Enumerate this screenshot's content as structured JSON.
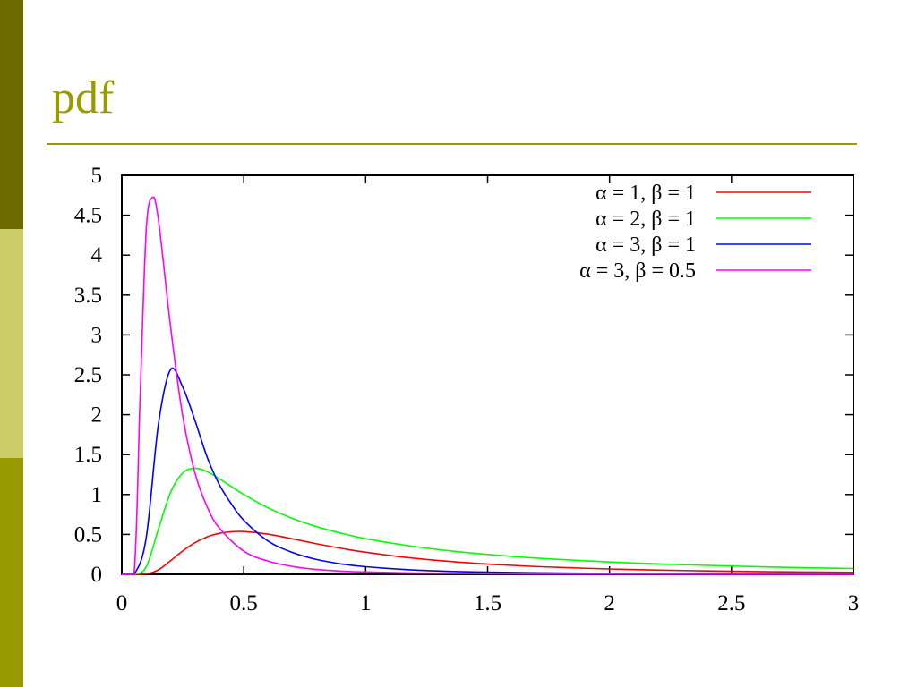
{
  "slide": {
    "title": "pdf"
  },
  "theme": {
    "sidebar_colors": [
      "#6b6b00",
      "#cccc66",
      "#999900"
    ],
    "title_color": "#999900"
  },
  "chart_data": {
    "type": "line",
    "title": "",
    "xlabel": "",
    "ylabel": "",
    "xlim": [
      0,
      3
    ],
    "ylim": [
      0,
      5
    ],
    "xticks": [
      "0",
      "0.5",
      "1",
      "1.5",
      "2",
      "2.5",
      "3"
    ],
    "yticks": [
      "0",
      "0.5",
      "1",
      "1.5",
      "2",
      "2.5",
      "3",
      "3.5",
      "4",
      "4.5",
      "5"
    ],
    "grid": false,
    "legend_position": "top-right",
    "series": [
      {
        "name": "α = 1, β = 1",
        "color": "#ff0000",
        "x": [
          0.0,
          0.05,
          0.1,
          0.15,
          0.2,
          0.25,
          0.3,
          0.35,
          0.4,
          0.45,
          0.5,
          0.6,
          0.7,
          0.8,
          0.9,
          1.0,
          1.2,
          1.4,
          1.6,
          1.8,
          2.0,
          2.2,
          2.4,
          2.6,
          2.8,
          3.0
        ],
        "y": [
          0.0,
          0.0,
          0.0045,
          0.0562,
          0.1709,
          0.2931,
          0.3959,
          0.4692,
          0.5131,
          0.5334,
          0.5359,
          0.5025,
          0.4436,
          0.3815,
          0.3253,
          0.2767,
          0.2011,
          0.1486,
          0.1118,
          0.0858,
          0.0669,
          0.0532,
          0.0429,
          0.0351,
          0.029,
          0.0242
        ]
      },
      {
        "name": "α = 2, β = 1",
        "color": "#00ff00",
        "x": [
          0.0,
          0.05,
          0.1,
          0.15,
          0.2,
          0.25,
          0.3,
          0.35,
          0.4,
          0.45,
          0.5,
          0.6,
          0.7,
          0.8,
          0.9,
          1.0,
          1.2,
          1.4,
          1.6,
          1.8,
          2.0,
          2.2,
          2.4,
          2.6,
          2.8,
          3.0
        ],
        "y": [
          0.0,
          0.0,
          0.0908,
          0.5626,
          1.0259,
          1.2695,
          1.3286,
          1.2852,
          1.1975,
          1.0973,
          1.0,
          0.8322,
          0.6993,
          0.5959,
          0.5143,
          0.4463,
          0.3475,
          0.2767,
          0.225,
          0.186,
          0.155,
          0.131,
          0.112,
          0.096,
          0.083,
          0.073
        ]
      },
      {
        "name": "α = 3, β = 1",
        "color": "#0000ff",
        "x": [
          0.0,
          0.05,
          0.1,
          0.15,
          0.2,
          0.25,
          0.3,
          0.35,
          0.4,
          0.45,
          0.5,
          0.6,
          0.7,
          0.8,
          0.9,
          1.0,
          1.2,
          1.4,
          1.6,
          1.8,
          2.0,
          2.2,
          2.4,
          2.6,
          2.8,
          3.0
        ],
        "y": [
          0.0,
          0.0,
          0.454,
          1.8755,
          2.5648,
          2.3443,
          1.9283,
          1.4686,
          1.1227,
          0.8779,
          0.6767,
          0.4161,
          0.2737,
          0.185,
          0.1305,
          0.0956,
          0.054,
          0.033,
          0.023,
          0.016,
          0.012,
          0.009,
          0.007,
          0.005,
          0.004,
          0.003
        ]
      },
      {
        "name": "α = 3, β = 0.5",
        "color": "#ff00ff",
        "x": [
          0.0,
          0.05,
          0.075,
          0.1,
          0.125,
          0.15,
          0.2,
          0.25,
          0.3,
          0.35,
          0.4,
          0.5,
          0.6,
          0.7,
          0.8,
          0.9,
          1.0,
          1.2,
          1.4,
          1.6,
          1.8,
          2.0,
          2.5,
          3.0
        ],
        "y": [
          0.0,
          0.0,
          2.2,
          4.3,
          4.72,
          4.45,
          3.1,
          1.98,
          1.27,
          0.845,
          0.58,
          0.29,
          0.165,
          0.098,
          0.06,
          0.04,
          0.03,
          0.016,
          0.01,
          0.006,
          0.004,
          0.003,
          0.001,
          0.0005
        ]
      }
    ]
  }
}
